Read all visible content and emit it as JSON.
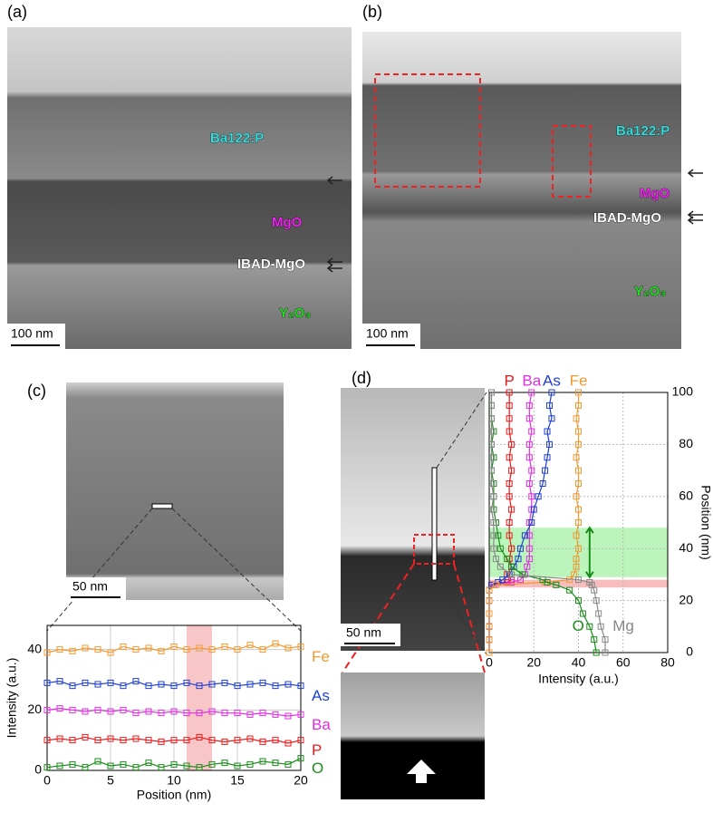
{
  "panels": {
    "a": {
      "label": "(a)",
      "layers": [
        "Ba122:P",
        "MgO",
        "IBAD-MgO",
        "Y₂O₃"
      ],
      "scale_bar": "100 nm"
    },
    "b": {
      "label": "(b)",
      "layers": [
        "Ba122:P",
        "MgO",
        "IBAD-MgO",
        "Y₂O₃"
      ],
      "scale_bar": "100 nm"
    },
    "c": {
      "label": "(c)",
      "scale_bar": "50 nm"
    },
    "d": {
      "label": "(d)",
      "scale_bar": "50 nm"
    }
  },
  "chart_data": [
    {
      "type": "line",
      "x_label": "Position (nm)",
      "y_label": "Intensity (a.u.)",
      "x": [
        0,
        1,
        2,
        3,
        4,
        5,
        6,
        7,
        8,
        9,
        10,
        11,
        12,
        13,
        14,
        15,
        16,
        17,
        18,
        19,
        20
      ],
      "series": [
        {
          "name": "Fe",
          "color": "#f09a30",
          "values": [
            39,
            40,
            39.5,
            40.5,
            40,
            39,
            41,
            40,
            40.5,
            39.5,
            41,
            40,
            40.5,
            40,
            41,
            40,
            41.5,
            40,
            42,
            40.5,
            41
          ]
        },
        {
          "name": "As",
          "color": "#1f3fd0",
          "values": [
            29,
            29.5,
            28,
            29,
            28.5,
            29,
            28,
            29.5,
            28,
            28.5,
            28,
            29,
            28,
            28.5,
            29,
            28,
            28.5,
            29,
            28,
            28.5,
            28
          ]
        },
        {
          "name": "Ba",
          "color": "#e02ee0",
          "values": [
            20,
            20.5,
            20,
            19.5,
            20,
            19.5,
            20,
            19,
            19.5,
            19,
            19.5,
            19,
            19,
            19.5,
            19,
            19,
            18.5,
            19,
            18.5,
            18,
            18.5
          ]
        },
        {
          "name": "P",
          "color": "#e8191a",
          "values": [
            10,
            10.5,
            10,
            11,
            10,
            10.5,
            10,
            10.5,
            10,
            9.5,
            10,
            10,
            11,
            10,
            9.5,
            10,
            10.5,
            9.5,
            10,
            9,
            10
          ]
        },
        {
          "name": "O",
          "color": "#1a8c1a",
          "values": [
            1,
            1.5,
            2,
            1,
            3,
            1.5,
            2,
            1,
            2.5,
            1,
            2,
            1.5,
            1,
            2,
            2.5,
            1.5,
            2,
            3,
            2.5,
            2,
            4
          ]
        }
      ],
      "xlim": [
        0,
        20
      ],
      "xticks": [
        0,
        5,
        10,
        15,
        20
      ],
      "ylim": [
        0,
        48
      ],
      "yticks": [
        0,
        20,
        40
      ],
      "grid": true,
      "shaded_x": [
        11,
        13
      ]
    },
    {
      "type": "profile",
      "x_label": "Intensity (a.u.)",
      "y_label": "Position (nm)",
      "y": [
        0,
        5,
        10,
        15,
        20,
        24,
        26,
        27,
        28,
        30,
        33,
        36,
        40,
        45,
        50,
        55,
        60,
        65,
        70,
        75,
        80,
        85,
        90,
        95,
        100
      ],
      "series": [
        {
          "name": "P",
          "color": "#e8191a",
          "values": [
            0,
            0,
            0,
            0,
            0,
            0,
            1,
            8,
            10,
            8,
            10,
            9,
            10,
            9,
            9,
            10,
            9,
            9,
            10,
            9,
            10,
            9,
            9,
            9,
            9
          ]
        },
        {
          "name": "Ba",
          "color": "#e02ee0",
          "values": [
            0,
            0,
            0,
            0,
            0,
            0,
            2,
            10,
            14,
            16,
            17,
            18,
            18,
            18,
            18,
            19,
            19,
            18,
            19,
            18,
            18,
            19,
            18,
            18,
            19
          ]
        },
        {
          "name": "As",
          "color": "#1f3fd0",
          "values": [
            0,
            0,
            0,
            0,
            0,
            0,
            1,
            4,
            6,
            9,
            11,
            13,
            14,
            16,
            19,
            20,
            22,
            24,
            25,
            26,
            27,
            26,
            28,
            27,
            28
          ]
        },
        {
          "name": "Fe",
          "color": "#f09a30",
          "values": [
            0,
            0,
            0,
            0,
            0,
            0,
            3,
            25,
            36,
            38,
            39,
            39,
            40,
            39,
            40,
            40,
            39,
            40,
            40,
            39,
            40,
            40,
            39,
            40,
            40
          ]
        },
        {
          "name": "O",
          "color": "#1a8c1a",
          "values": [
            48,
            47,
            45,
            42,
            40,
            36,
            30,
            26,
            24,
            15,
            10,
            8,
            5,
            4,
            3,
            2,
            2,
            2,
            1,
            2,
            1,
            2,
            1,
            1,
            1
          ]
        },
        {
          "name": "Mg",
          "color": "#888888",
          "values": [
            52,
            52,
            50,
            49,
            48,
            47,
            46,
            45,
            40,
            10,
            5,
            3,
            2,
            2,
            2,
            1,
            2,
            1,
            1,
            1,
            1,
            1,
            1,
            1,
            1
          ]
        }
      ],
      "xlim": [
        0,
        80
      ],
      "xticks": [
        0,
        20,
        40,
        60,
        80
      ],
      "ylim": [
        0,
        100
      ],
      "yticks": [
        0,
        20,
        40,
        60,
        80,
        100
      ],
      "grid": true,
      "shaded_y_green": [
        29,
        48
      ],
      "shaded_y_pink": [
        25,
        28
      ]
    }
  ]
}
